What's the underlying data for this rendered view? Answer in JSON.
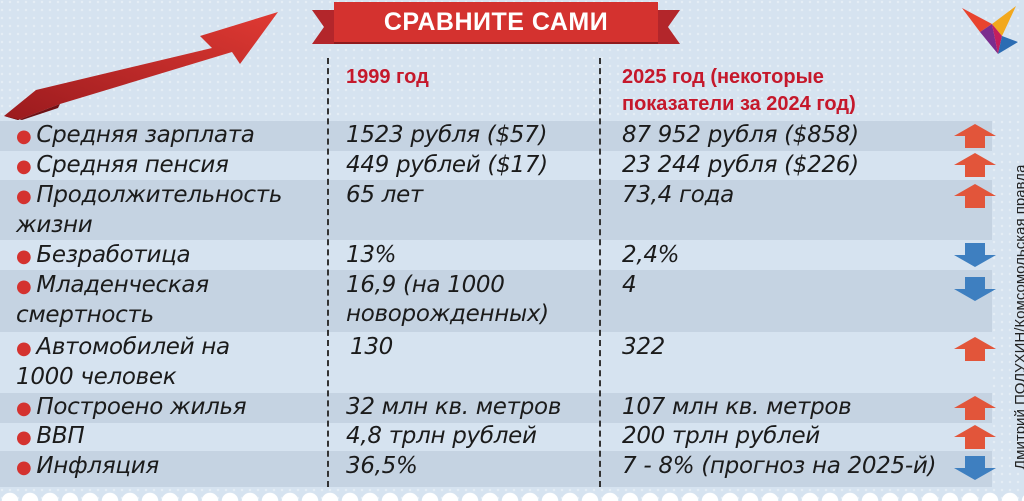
{
  "banner": {
    "title": "СРАВНИТЕ САМИ"
  },
  "headers": {
    "col_1999": "1999 год",
    "col_2025": "2025 год (некоторые показатели за 2024 год)"
  },
  "rows": [
    {
      "name": "Средняя зарплата",
      "v1999": "1523 рубля ($57)",
      "v2025": "87 952 рубля ($858)",
      "trend": "up-arrow-icon"
    },
    {
      "name": "Средняя пенсия",
      "v1999": "449 рублей ($17)",
      "v2025": "23 244 рубля ($226)",
      "trend": "up-arrow-icon"
    },
    {
      "name": "Продолжительность жизни",
      "v1999": "65 лет",
      "v2025": "73,4 года",
      "trend": "up-arrow-icon"
    },
    {
      "name": "Безработица",
      "v1999": "13%",
      "v2025": "2,4%",
      "trend": "down-arrow-icon"
    },
    {
      "name": "Младенческая смертность",
      "v1999": "16,9 (на 1000 новорожденных)",
      "v2025": "4",
      "trend": "down-arrow-icon"
    },
    {
      "name": "Автомобилей на 1000 человек",
      "v1999": "130",
      "v2025": "322",
      "trend": "up-arrow-icon"
    },
    {
      "name": "Построено жилья",
      "v1999": "32 млн кв. метров",
      "v2025": "107 млн кв. метров",
      "trend": "up-arrow-icon"
    },
    {
      "name": "ВВП",
      "v1999": "4,8 трлн рублей",
      "v2025": "200 трлн рублей",
      "trend": "up-arrow-icon"
    },
    {
      "name": "Инфляция",
      "v1999": "36,5%",
      "v2025": "7 - 8% (прогноз на 2025-й)",
      "trend": "down-arrow-icon"
    }
  ],
  "credit": "Дмитрий ПОЛУХИН/Комсомольская правда",
  "colors": {
    "accent_red": "#d4322f",
    "up_arrow": "#e2553a",
    "down_arrow": "#3e7fc0",
    "header_red": "#c5182b"
  }
}
